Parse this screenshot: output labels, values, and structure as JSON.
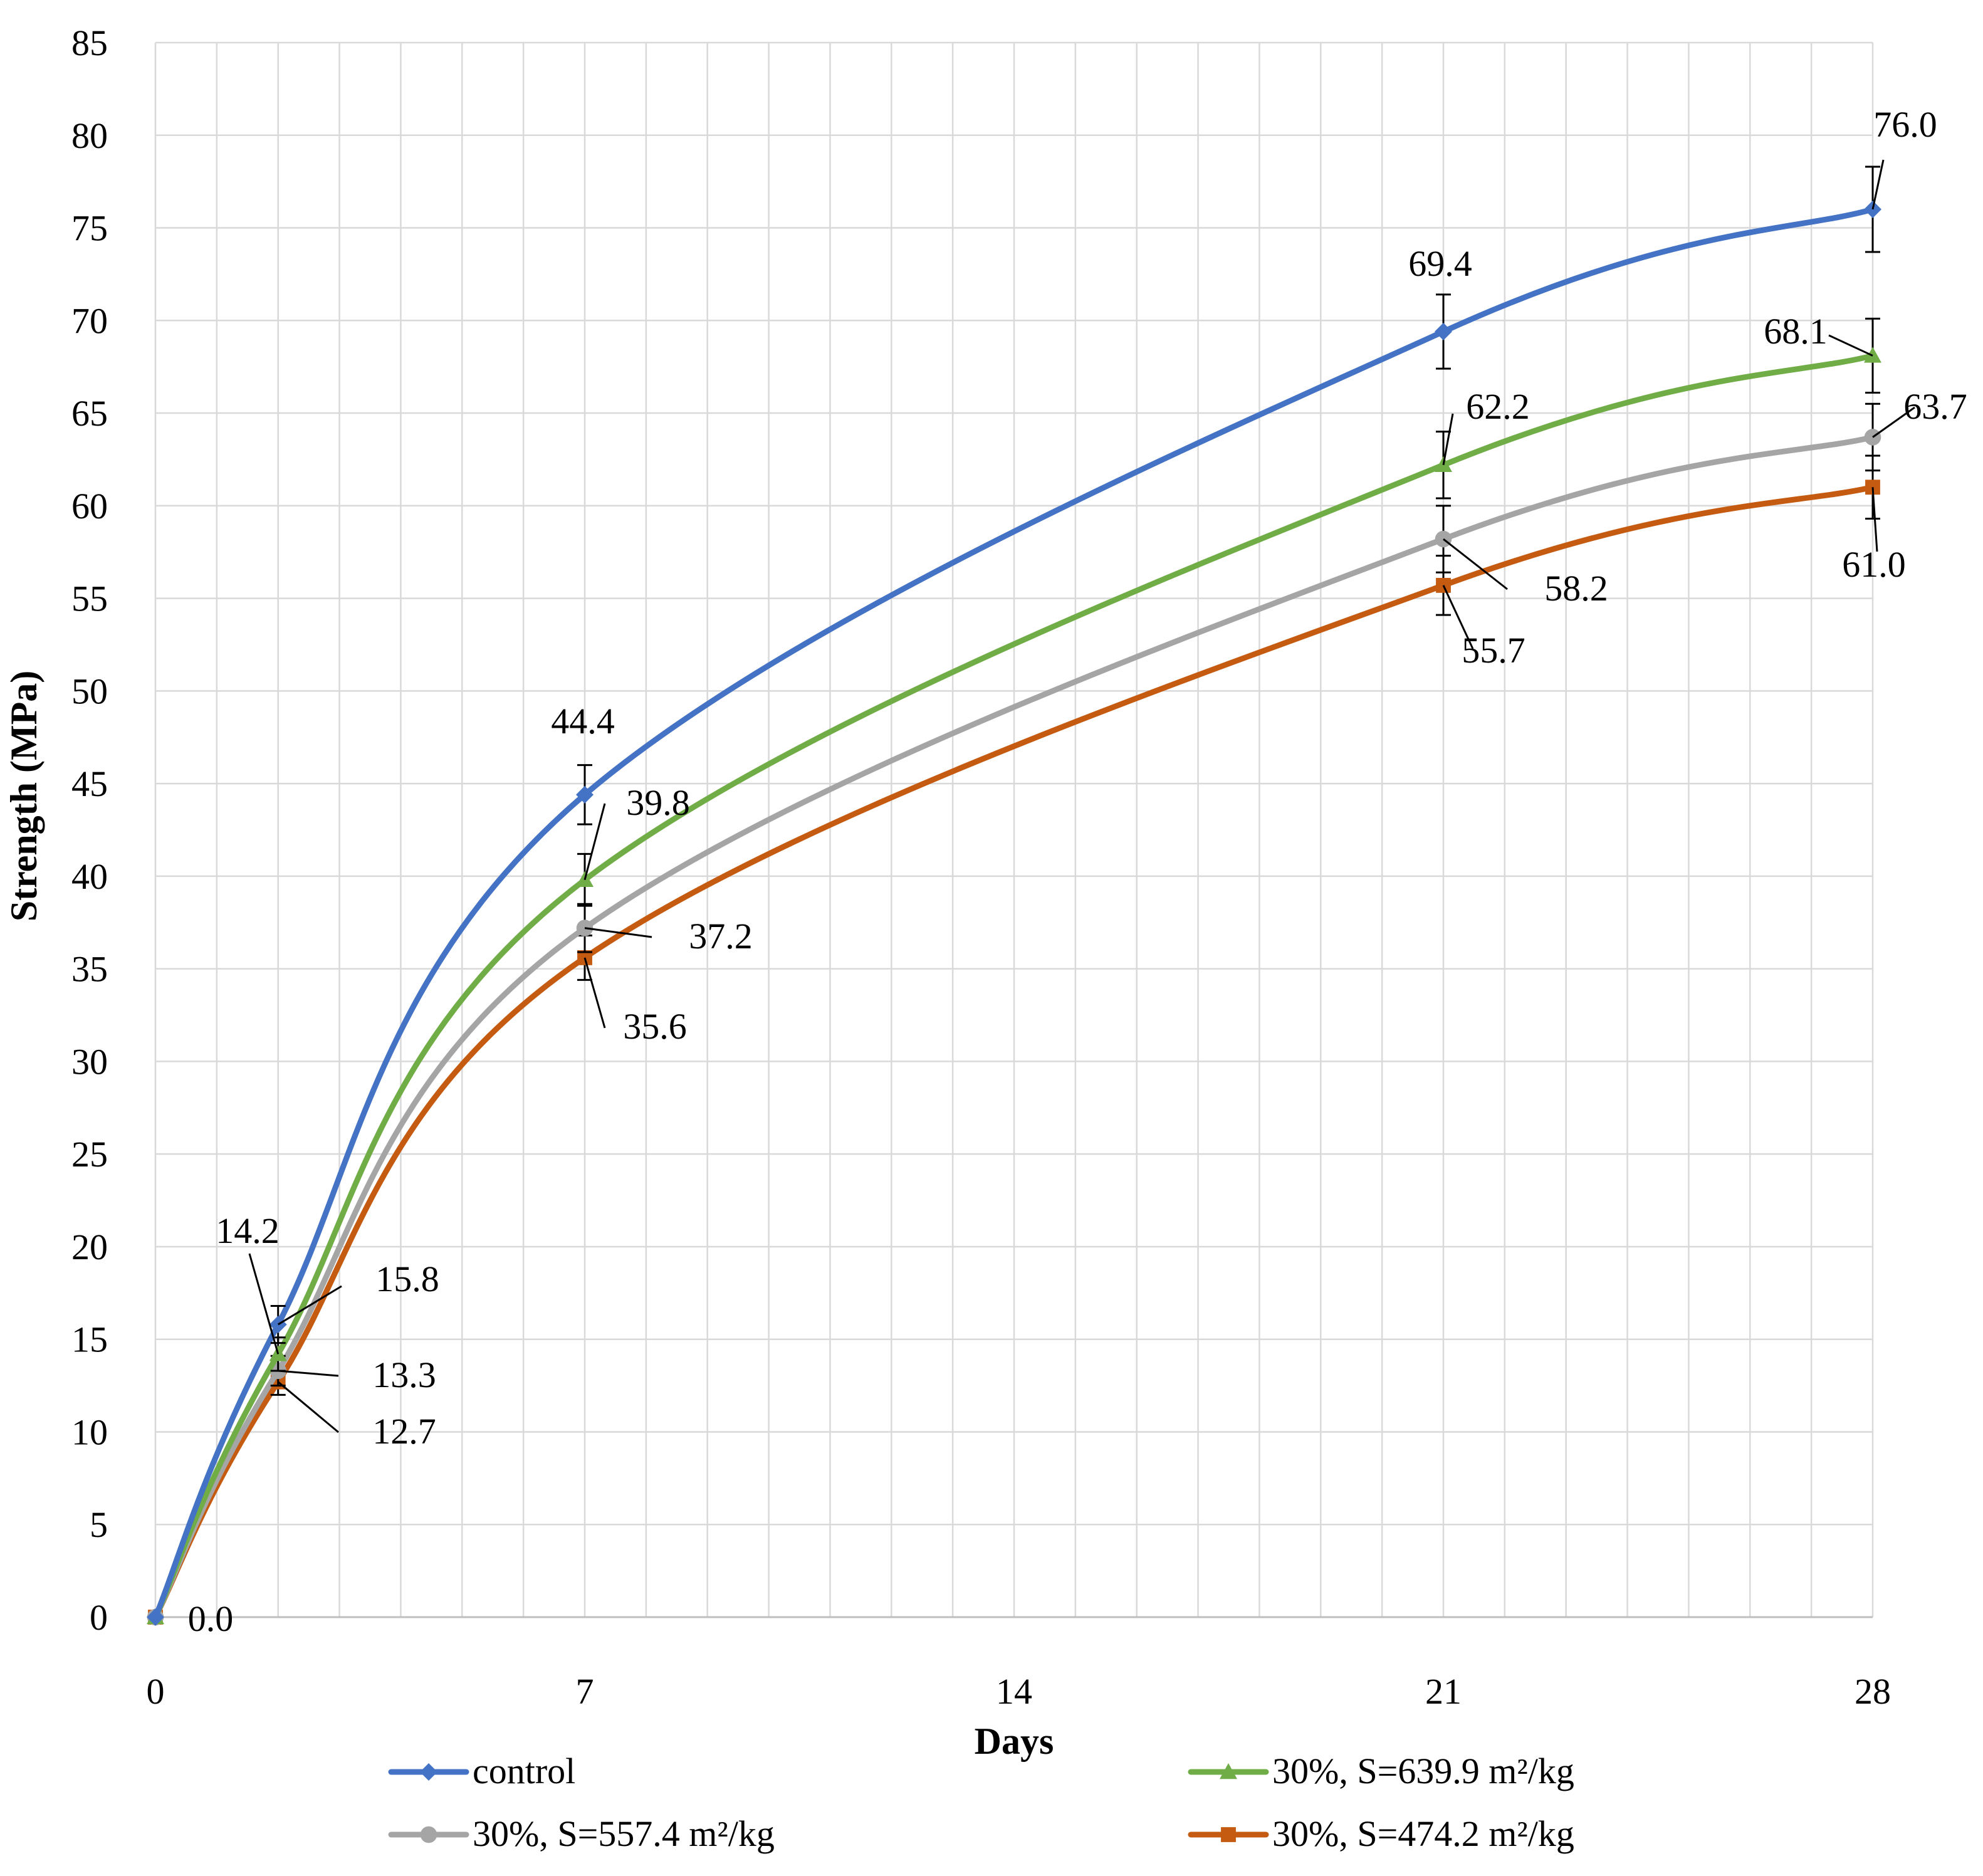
{
  "chart_data": {
    "type": "line",
    "xlabel": "Days",
    "ylabel": "Strength (MPa)",
    "xlim": [
      0,
      28
    ],
    "ylim": [
      0,
      85
    ],
    "x_ticks": [
      "0",
      "7",
      "14",
      "21",
      "28"
    ],
    "y_ticks": [
      "0",
      "5",
      "10",
      "15",
      "20",
      "25",
      "30",
      "35",
      "40",
      "45",
      "50",
      "55",
      "60",
      "65",
      "70",
      "75",
      "80",
      "85"
    ],
    "grid": true,
    "legend_position": "bottom",
    "x": [
      0,
      2,
      7,
      21,
      28
    ],
    "series": [
      {
        "name": "control",
        "color": "#4472C4",
        "marker": "diamond",
        "values": [
          0,
          15.8,
          44.4,
          69.4,
          76.0
        ],
        "error": [
          0,
          1.0,
          1.6,
          2.0,
          2.3
        ],
        "labels": [
          "0.0",
          "15.8",
          "44.4",
          "69.4",
          "76.0"
        ]
      },
      {
        "name": "30%, S=639.9 m²/kg",
        "color": "#70AD47",
        "marker": "triangle",
        "values": [
          0,
          14.2,
          39.8,
          62.2,
          68.1
        ],
        "error": [
          0,
          0.9,
          1.4,
          1.8,
          2.0
        ],
        "labels": [
          "",
          "14.2",
          "39.8",
          "62.2",
          "68.1"
        ]
      },
      {
        "name": "30%, S=557.4 m²/kg",
        "color": "#A5A5A5",
        "marker": "circle",
        "values": [
          0,
          13.3,
          37.2,
          58.2,
          63.7
        ],
        "error": [
          0,
          0.8,
          1.3,
          1.8,
          1.8
        ],
        "labels": [
          "",
          "13.3",
          "37.2",
          "58.2",
          "63.7"
        ]
      },
      {
        "name": "30%, S=474.2 m²/kg",
        "color": "#C55A11",
        "marker": "square",
        "values": [
          0,
          12.7,
          35.6,
          55.7,
          61.0
        ],
        "error": [
          0,
          0.7,
          1.2,
          1.6,
          1.7
        ],
        "labels": [
          "",
          "12.7",
          "35.6",
          "55.7",
          "61.0"
        ]
      }
    ]
  }
}
